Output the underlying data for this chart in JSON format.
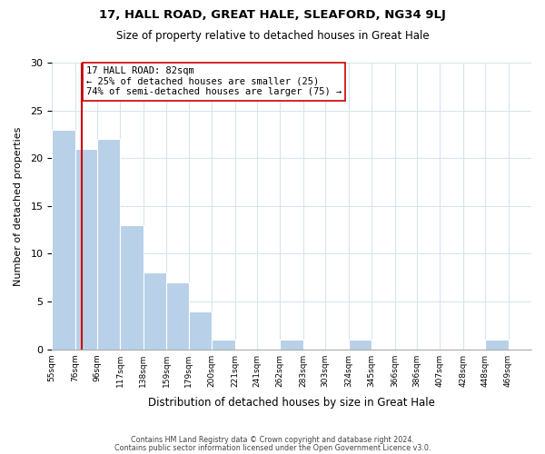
{
  "title1": "17, HALL ROAD, GREAT HALE, SLEAFORD, NG34 9LJ",
  "title2": "Size of property relative to detached houses in Great Hale",
  "xlabel": "Distribution of detached houses by size in Great Hale",
  "ylabel": "Number of detached properties",
  "bar_color": "#b8d0e8",
  "bar_edge_color": "#ffffff",
  "bin_labels": [
    "55sqm",
    "76sqm",
    "96sqm",
    "117sqm",
    "138sqm",
    "159sqm",
    "179sqm",
    "200sqm",
    "221sqm",
    "241sqm",
    "262sqm",
    "283sqm",
    "303sqm",
    "324sqm",
    "345sqm",
    "366sqm",
    "386sqm",
    "407sqm",
    "428sqm",
    "448sqm",
    "469sqm"
  ],
  "bar_heights": [
    23,
    21,
    22,
    13,
    8,
    7,
    4,
    1,
    0,
    0,
    1,
    0,
    0,
    1,
    0,
    0,
    0,
    0,
    0,
    1,
    0
  ],
  "bin_edges": [
    55,
    76,
    96,
    117,
    138,
    159,
    179,
    200,
    221,
    241,
    262,
    283,
    303,
    324,
    345,
    366,
    386,
    407,
    428,
    448,
    469,
    490
  ],
  "vline_x": 82,
  "vline_color": "#cc0000",
  "annotation_text": "17 HALL ROAD: 82sqm\n← 25% of detached houses are smaller (25)\n74% of semi-detached houses are larger (75) →",
  "annotation_box_color": "#ffffff",
  "annotation_box_edge": "#cc0000",
  "ylim": [
    0,
    30
  ],
  "yticks": [
    0,
    5,
    10,
    15,
    20,
    25,
    30
  ],
  "footer1": "Contains HM Land Registry data © Crown copyright and database right 2024.",
  "footer2": "Contains public sector information licensed under the Open Government Licence v3.0.",
  "grid_color": "#d8e4f0",
  "background_color": "#ffffff"
}
